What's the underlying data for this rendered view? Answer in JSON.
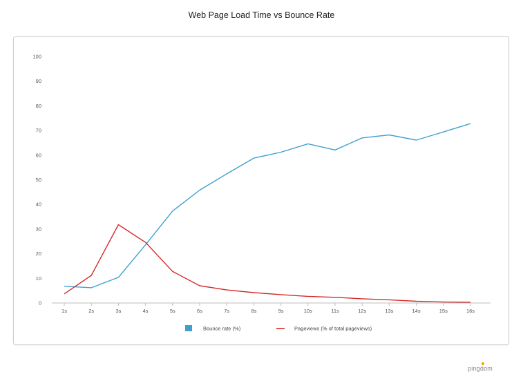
{
  "title": "Web Page Load Time vs Bounce Rate",
  "brand": "pingdom",
  "colors": {
    "bounce": "#3fa0d0",
    "pageviews": "#d42a2a",
    "axis": "#bdbdbd"
  },
  "chart_data": {
    "type": "line",
    "title": "Web Page Load Time vs Bounce Rate",
    "xlabel": "",
    "ylabel": "",
    "categories": [
      "1s",
      "2s",
      "3s",
      "4s",
      "5s",
      "6s",
      "7s",
      "8s",
      "9s",
      "10s",
      "11s",
      "12s",
      "13s",
      "14s",
      "15s",
      "16s"
    ],
    "y_ticks": [
      "0",
      "10",
      "20",
      "30",
      "40",
      "50",
      "60",
      "70",
      "80",
      "90",
      "100"
    ],
    "ylim": [
      0,
      100
    ],
    "grid": false,
    "legend_position": "bottom-center",
    "series": [
      {
        "name": "Bounce rate (%)",
        "legend_marker": "square",
        "color": "#3fa0d0",
        "values": [
          6.8,
          6.2,
          10.4,
          23.6,
          37.3,
          45.8,
          52.4,
          58.8,
          61.2,
          64.6,
          62.1,
          67.0,
          68.2,
          66.1,
          69.4,
          72.8
        ]
      },
      {
        "name": "Pageviews (% of total pageviews)",
        "legend_marker": "line",
        "color": "#d42a2a",
        "values": [
          3.7,
          11.2,
          31.8,
          24.6,
          12.8,
          7.0,
          5.3,
          4.2,
          3.4,
          2.7,
          2.3,
          1.7,
          1.3,
          0.7,
          0.4,
          0.3
        ]
      }
    ]
  }
}
